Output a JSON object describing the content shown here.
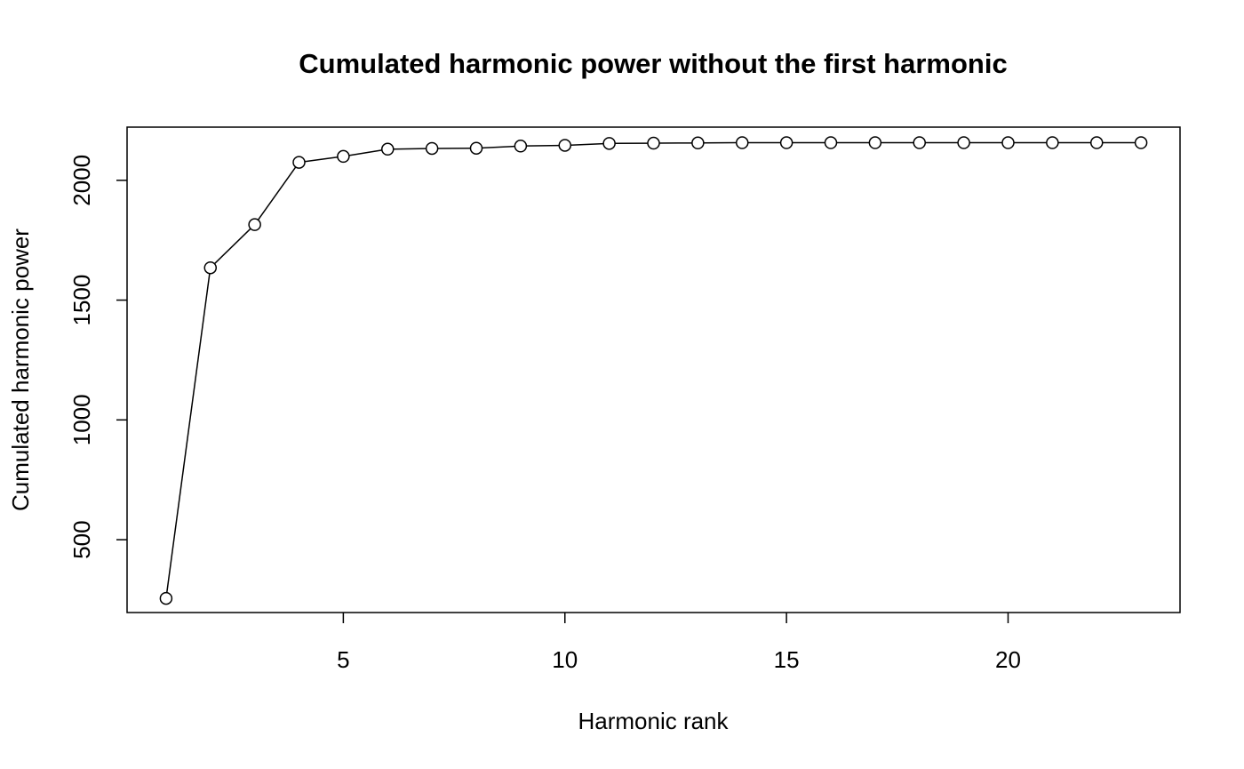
{
  "chart_data": {
    "type": "line",
    "title": "Cumulated harmonic power without the first harmonic",
    "xlabel": "Harmonic rank",
    "ylabel": "Cumulated harmonic power",
    "xlim": [
      0.12,
      23.88
    ],
    "ylim": [
      196,
      2222
    ],
    "xticks": [
      5,
      10,
      15,
      20
    ],
    "yticks": [
      500,
      1000,
      1500,
      2000
    ],
    "grid": false,
    "marker": "open-circle",
    "line_color": "#000000",
    "series": [
      {
        "x": [
          1,
          2,
          3,
          4,
          5,
          6,
          7,
          8,
          9,
          10,
          11,
          12,
          13,
          14,
          15,
          16,
          17,
          18,
          19,
          20,
          21,
          22,
          23
        ],
        "values": [
          255,
          1635,
          1815,
          2075,
          2100,
          2130,
          2133,
          2134,
          2143,
          2146,
          2154,
          2155,
          2156,
          2157,
          2157,
          2157,
          2157,
          2157,
          2157,
          2157,
          2157,
          2157,
          2157
        ]
      }
    ]
  }
}
